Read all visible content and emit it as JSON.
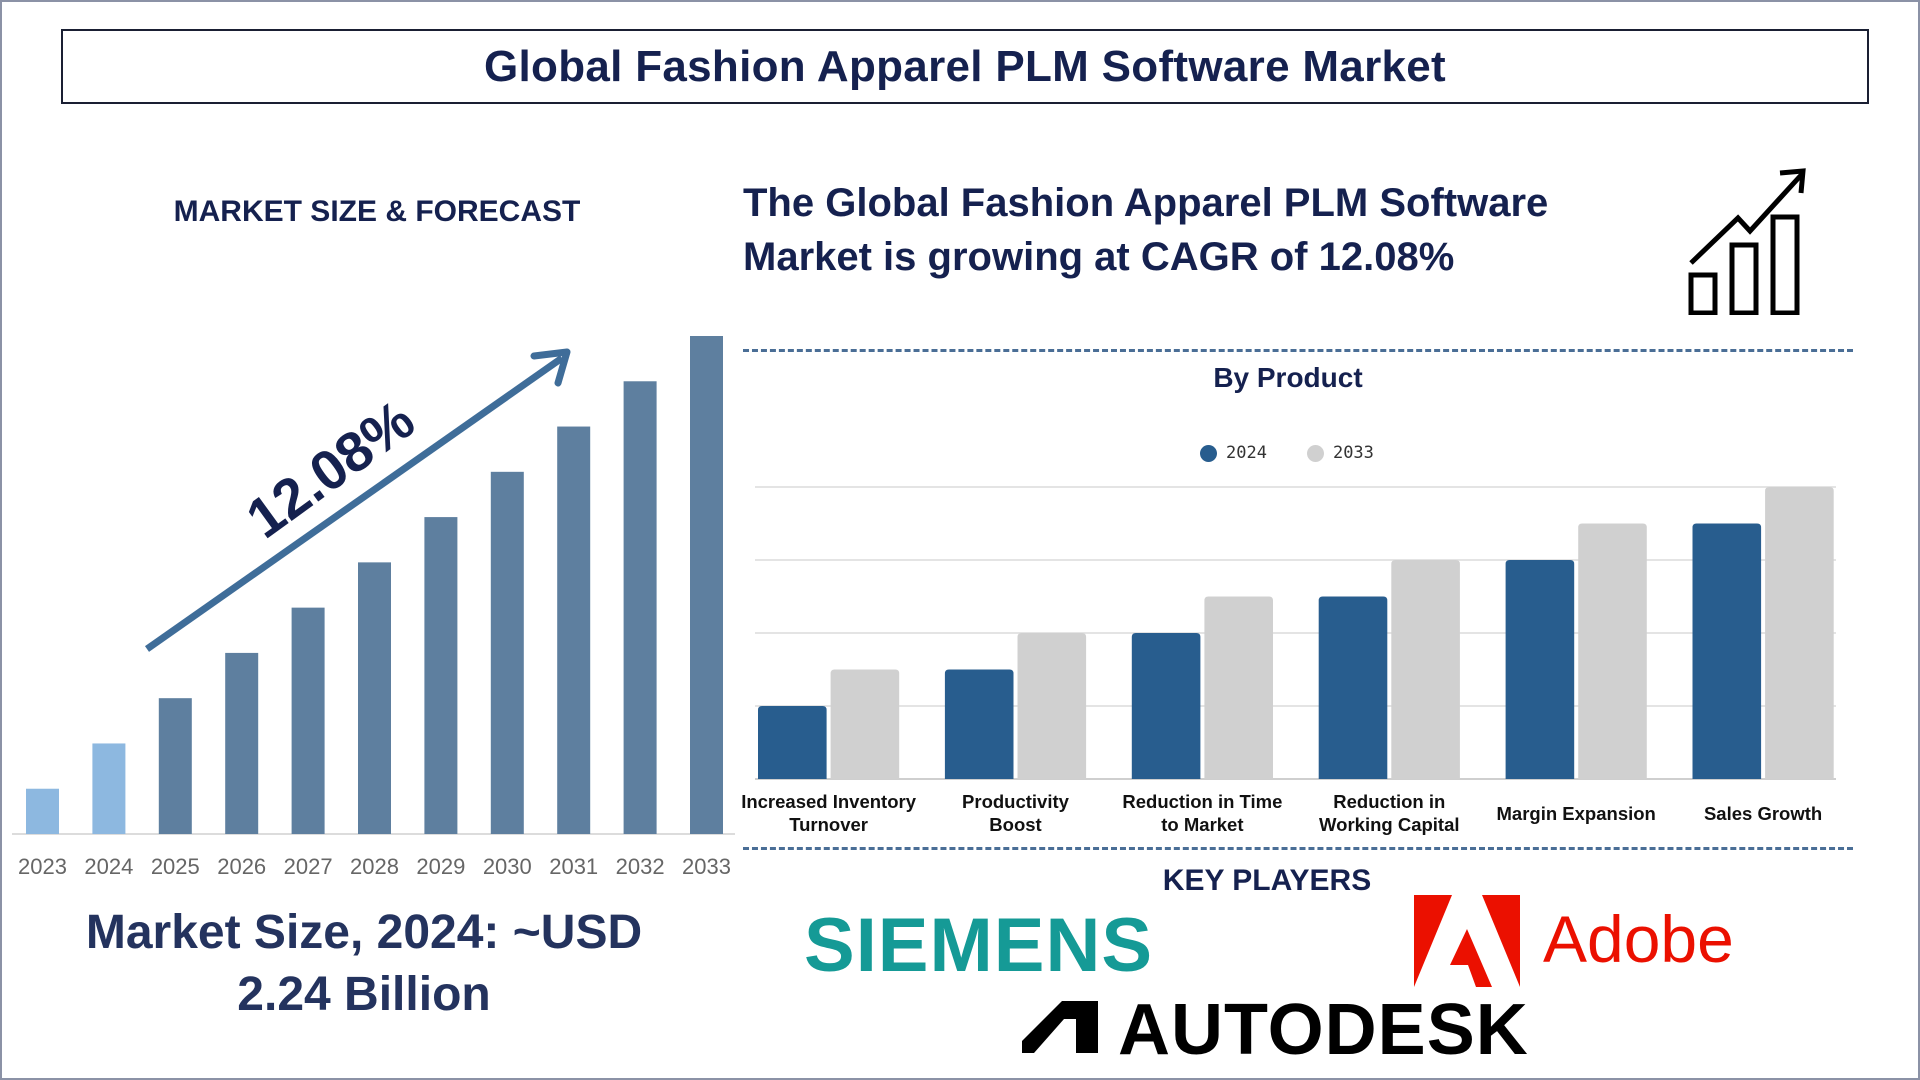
{
  "header": {
    "title": "Global Fashion Apparel PLM Software Market"
  },
  "left": {
    "section_title": "MARKET SIZE & FORECAST",
    "cagr_label": "12.08%",
    "market_size_line1": "Market Size, 2024: ~USD",
    "market_size_line2": "2.24 Billion"
  },
  "right": {
    "headline_line1": "The Global Fashion Apparel PLM Software",
    "headline_line2": "Market is growing at CAGR of 12.08%",
    "icon": "growth-chart-icon"
  },
  "key_players": {
    "title": "KEY PLAYERS",
    "logos": [
      "SIEMENS",
      "Adobe",
      "AUTODESK"
    ]
  },
  "colors": {
    "navy": "#15214f",
    "bar_history": "#8db8e0",
    "bar_forecast": "#5e7f9f",
    "arrow": "#3f6d99",
    "series_2024": "#285d8e",
    "series_2033": "#d0d0d0",
    "siemens": "#159a96",
    "adobe": "#eb1000"
  },
  "chart_data": [
    {
      "type": "bar",
      "title": "",
      "categories": [
        "2023",
        "2024",
        "2025",
        "2026",
        "2027",
        "2028",
        "2029",
        "2030",
        "2031",
        "2032",
        "2033"
      ],
      "values": [
        1,
        2,
        3,
        4,
        5,
        6,
        7,
        8,
        9,
        10,
        11
      ],
      "xlabel": "",
      "ylabel": "",
      "ylim": [
        0,
        11
      ],
      "grid": false,
      "annotation": "12.08%"
    },
    {
      "type": "bar",
      "title": "By Product",
      "categories": [
        "Increased Inventory Turnover",
        "Productivity Boost",
        "Reduction in Time to Market",
        "Reduction in Working Capital",
        "Margin Expansion",
        "Sales Growth"
      ],
      "series": [
        {
          "name": "2024",
          "values": [
            1,
            1.5,
            2,
            2.5,
            3,
            3.5
          ]
        },
        {
          "name": "2033",
          "values": [
            1.5,
            2,
            2.5,
            3,
            3.5,
            4
          ]
        }
      ],
      "ylim": [
        0,
        4
      ],
      "grid": true,
      "legend": "top-center"
    }
  ]
}
